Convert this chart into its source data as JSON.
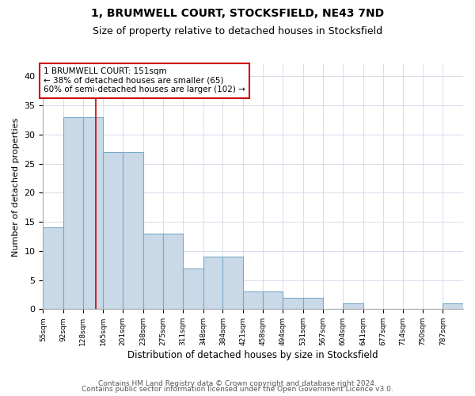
{
  "title": "1, BRUMWELL COURT, STOCKSFIELD, NE43 7ND",
  "subtitle": "Size of property relative to detached houses in Stocksfield",
  "xlabel": "Distribution of detached houses by size in Stocksfield",
  "ylabel": "Number of detached properties",
  "bin_edges": [
    55,
    92,
    128,
    165,
    201,
    238,
    275,
    311,
    348,
    384,
    421,
    458,
    494,
    531,
    567,
    604,
    641,
    677,
    714,
    750,
    787,
    824
  ],
  "bar_heights": [
    14,
    33,
    33,
    27,
    27,
    13,
    13,
    7,
    9,
    9,
    3,
    3,
    2,
    2,
    0,
    1,
    0,
    0,
    0,
    0,
    1
  ],
  "bar_color": "#c9d9e8",
  "bar_edge_color": "#7aaac8",
  "bar_linewidth": 0.8,
  "vline_x": 151,
  "vline_color": "#cc0000",
  "annotation_line1": "1 BRUMWELL COURT: 151sqm",
  "annotation_line2": "← 38% of detached houses are smaller (65)",
  "annotation_line3": "60% of semi-detached houses are larger (102) →",
  "annotation_box_color": "#cc0000",
  "annotation_fontsize": 7.5,
  "ylim": [
    0,
    42
  ],
  "yticks": [
    0,
    5,
    10,
    15,
    20,
    25,
    30,
    35,
    40
  ],
  "footer_line1": "Contains HM Land Registry data © Crown copyright and database right 2024.",
  "footer_line2": "Contains public sector information licensed under the Open Government Licence v3.0.",
  "title_fontsize": 10,
  "subtitle_fontsize": 9,
  "xlabel_fontsize": 8.5,
  "ylabel_fontsize": 8,
  "footer_fontsize": 6.5,
  "background_color": "#ffffff",
  "grid_color": "#d0d8e8",
  "xtick_labels": [
    "55sqm",
    "92sqm",
    "128sqm",
    "165sqm",
    "201sqm",
    "238sqm",
    "275sqm",
    "311sqm",
    "348sqm",
    "384sqm",
    "421sqm",
    "458sqm",
    "494sqm",
    "531sqm",
    "567sqm",
    "604sqm",
    "641sqm",
    "677sqm",
    "714sqm",
    "750sqm",
    "787sqm"
  ]
}
